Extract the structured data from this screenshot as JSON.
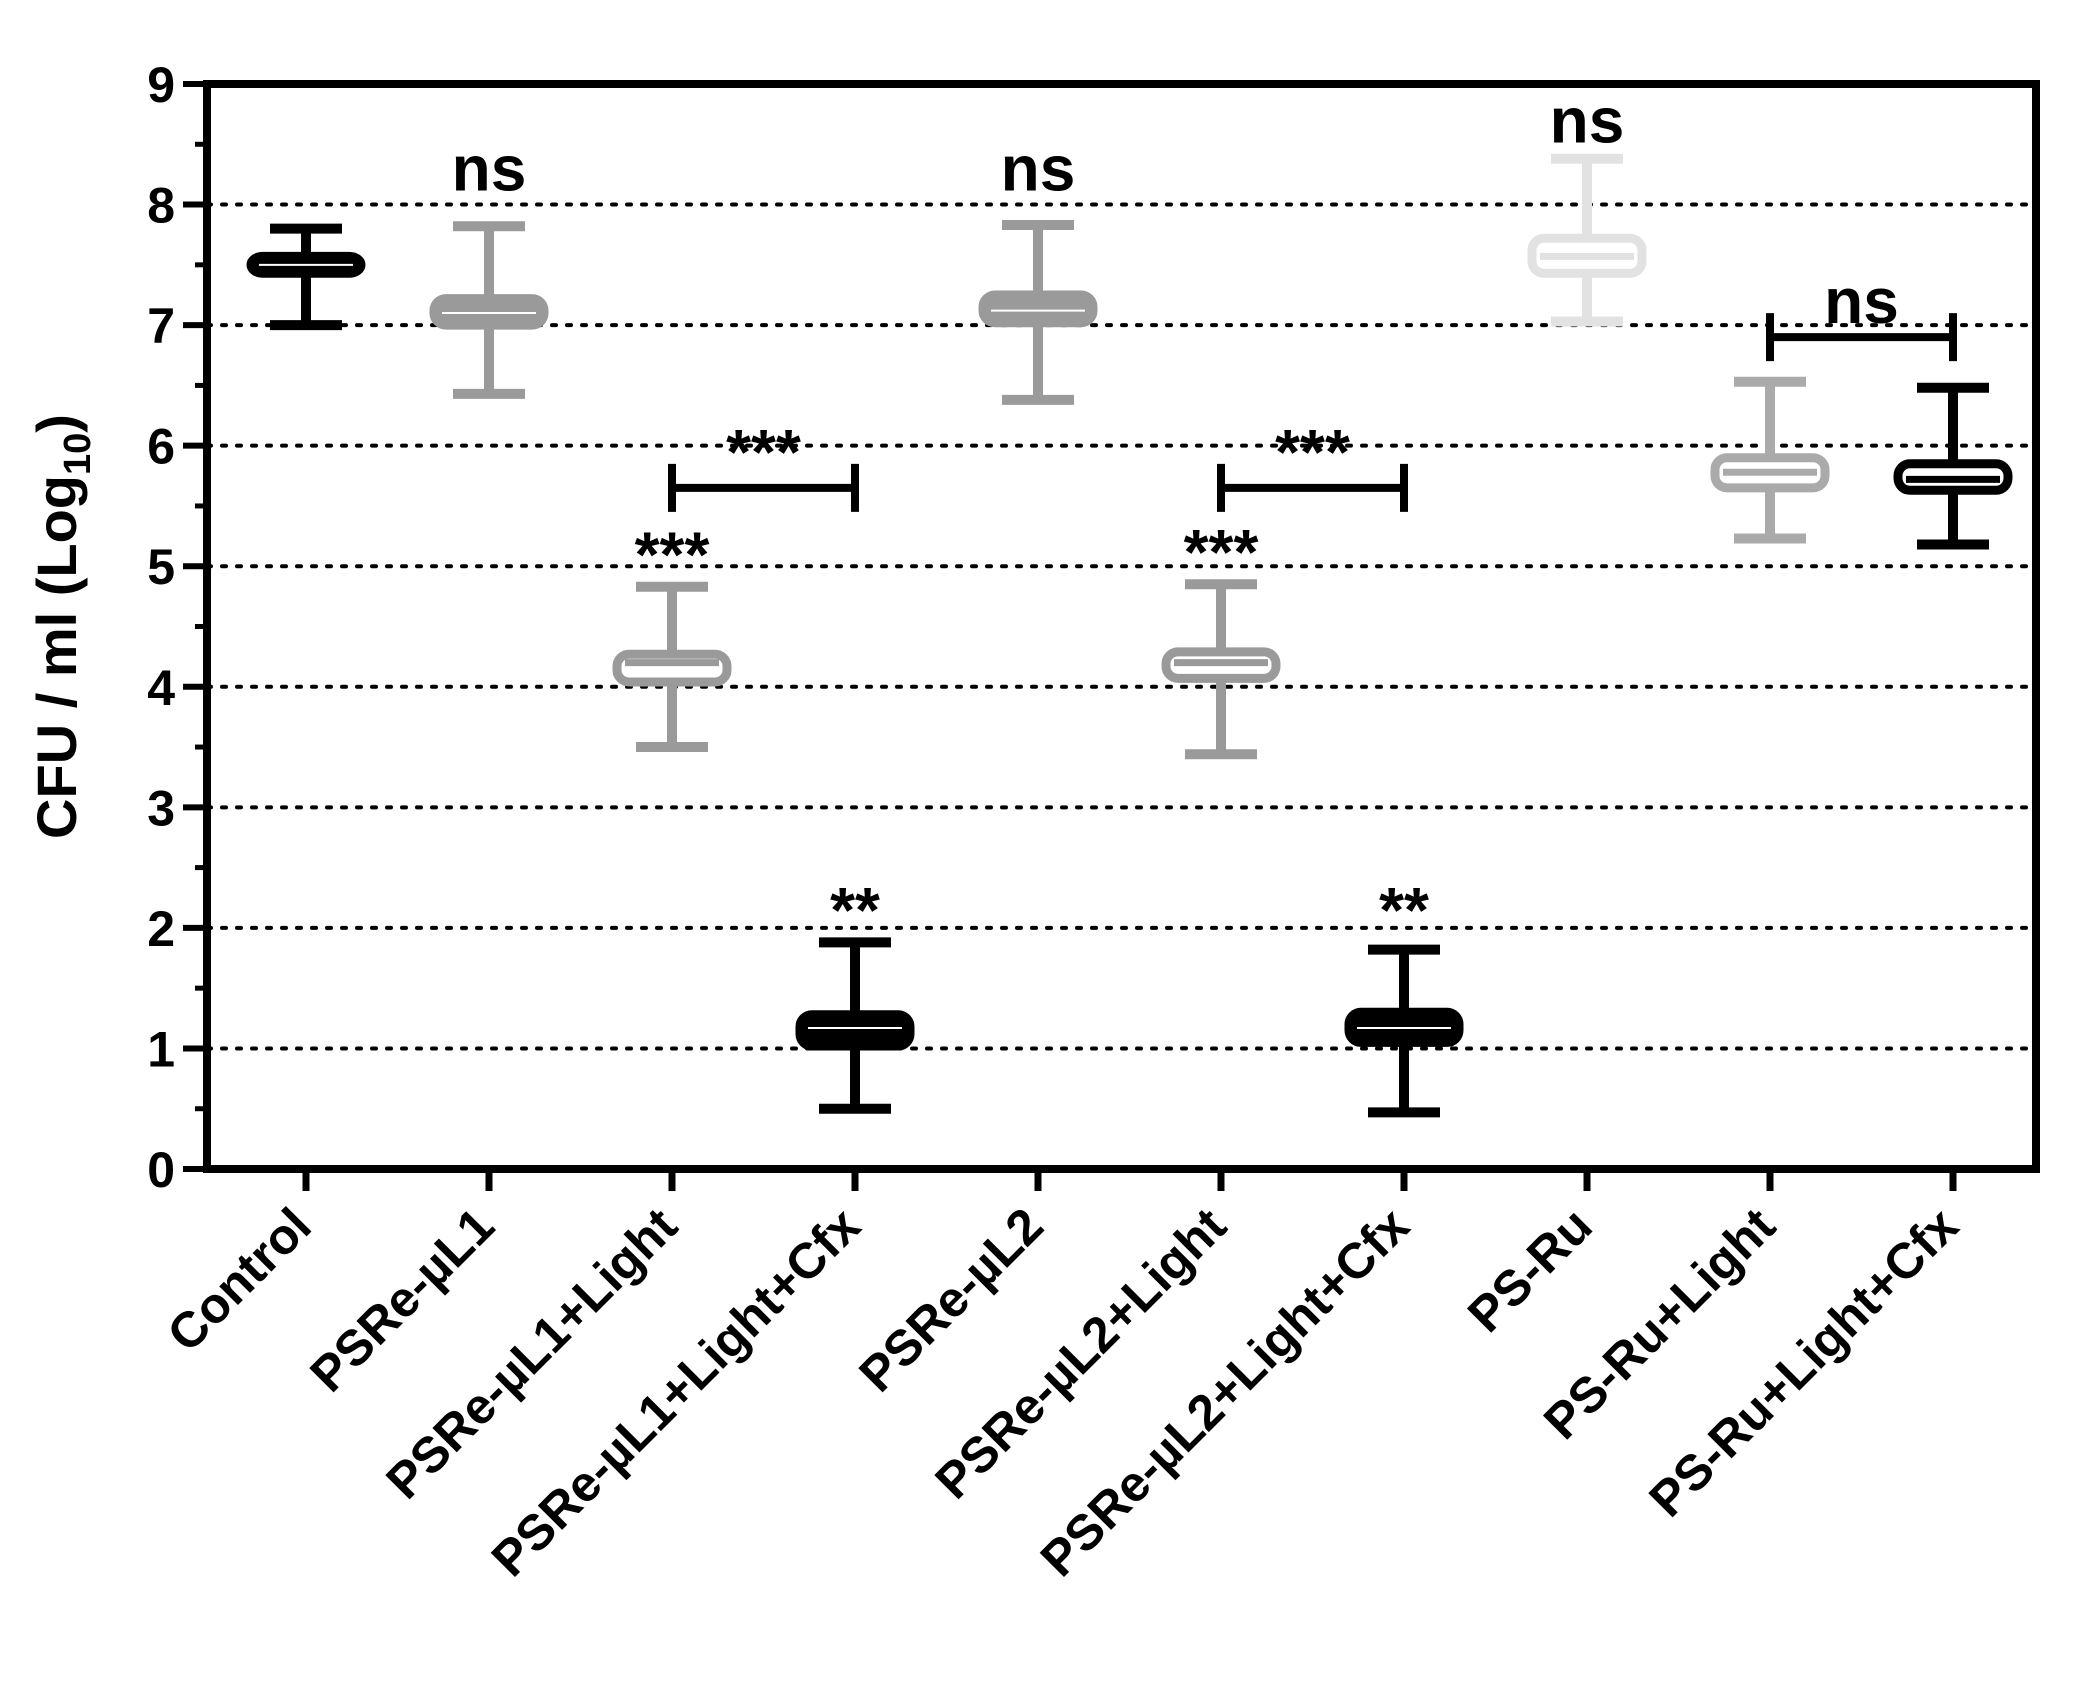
{
  "chart_data": {
    "type": "box",
    "title": "",
    "xlabel": "",
    "ylabel": "CFU / ml (Log",
    "ylabel_subscript": "10",
    "ylabel_close": ")",
    "ylim": [
      0,
      9
    ],
    "yticks": [
      "0",
      "1",
      "2",
      "3",
      "4",
      "5",
      "6",
      "7",
      "8",
      "9"
    ],
    "grid": "horizontal dotted",
    "categories": [
      "Control",
      "PSRe-µL1",
      "PSRe-µL1+Light",
      "PSRe-µL1+Light+Cfx",
      "PSRe-µL2",
      "PSRe-µL2+Light",
      "PSRe-µL2+Light+Cfx",
      "PS-Ru",
      "PS-Ru+Light",
      "PS-Ru+Light+Cfx"
    ],
    "series": [
      {
        "name": "Control",
        "min": 7.0,
        "q1": 7.43,
        "median": 7.5,
        "q3": 7.57,
        "max": 7.8,
        "color": "#000000",
        "filled": true
      },
      {
        "name": "PSRe-µL1",
        "min": 6.43,
        "q1": 7.0,
        "median": 7.1,
        "q3": 7.22,
        "max": 7.82,
        "color": "#9a9a9a",
        "filled": true
      },
      {
        "name": "PSRe-µL1+Light",
        "min": 3.5,
        "q1": 4.04,
        "median": 4.2,
        "q3": 4.27,
        "max": 4.83,
        "color": "#9a9a9a",
        "filled": false
      },
      {
        "name": "PSRe-µL1+Light+Cfx",
        "min": 0.5,
        "q1": 1.02,
        "median": 1.17,
        "q3": 1.28,
        "max": 1.88,
        "color": "#000000",
        "filled": true
      },
      {
        "name": "PSRe-µL2",
        "min": 6.38,
        "q1": 7.02,
        "median": 7.12,
        "q3": 7.25,
        "max": 7.83,
        "color": "#9a9a9a",
        "filled": true
      },
      {
        "name": "PSRe-µL2+Light",
        "min": 3.44,
        "q1": 4.07,
        "median": 4.2,
        "q3": 4.29,
        "max": 4.85,
        "color": "#9a9a9a",
        "filled": false
      },
      {
        "name": "PSRe-µL2+Light+Cfx",
        "min": 0.47,
        "q1": 1.05,
        "median": 1.17,
        "q3": 1.3,
        "max": 1.82,
        "color": "#000000",
        "filled": true
      },
      {
        "name": "PS-Ru",
        "min": 7.03,
        "q1": 7.43,
        "median": 7.57,
        "q3": 7.72,
        "max": 8.38,
        "color": "#e2e2e2",
        "filled": false
      },
      {
        "name": "PS-Ru+Light",
        "min": 5.23,
        "q1": 5.65,
        "median": 5.78,
        "q3": 5.9,
        "max": 6.53,
        "color": "#aaaaaa",
        "filled": false
      },
      {
        "name": "PS-Ru+Light+Cfx",
        "min": 5.18,
        "q1": 5.63,
        "median": 5.72,
        "q3": 5.85,
        "max": 6.48,
        "color": "#000000",
        "filled": false
      }
    ],
    "annotations": [
      {
        "text": "ns",
        "category": 1,
        "y": 8.05
      },
      {
        "text": "***",
        "category": 2,
        "y": 4.85
      },
      {
        "text": "**",
        "category": 3,
        "y": 1.9
      },
      {
        "text": "ns",
        "category": 4,
        "y": 8.05
      },
      {
        "text": "***",
        "category": 5,
        "y": 4.87
      },
      {
        "text": "**",
        "category": 6,
        "y": 1.9
      },
      {
        "text": "ns",
        "category": 7,
        "y": 8.45
      }
    ],
    "brackets": [
      {
        "from": 2,
        "to": 3,
        "y": 5.65,
        "text": "***"
      },
      {
        "from": 5,
        "to": 6,
        "y": 5.65,
        "text": "***"
      },
      {
        "from": 8,
        "to": 9,
        "y": 6.9,
        "text": "ns"
      }
    ]
  }
}
